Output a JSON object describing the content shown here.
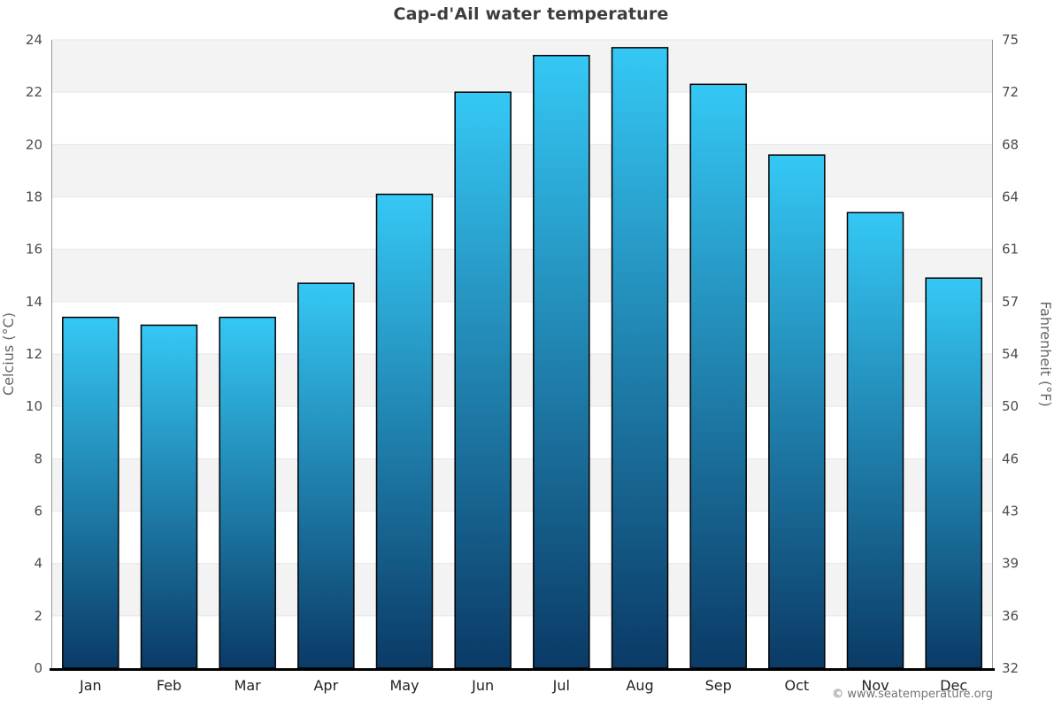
{
  "title": "Cap-d'Ail water temperature",
  "copyright": "© www.seatemperature.org",
  "chart_data": {
    "type": "bar",
    "title": "Cap-d'Ail water temperature",
    "categories": [
      "Jan",
      "Feb",
      "Mar",
      "Apr",
      "May",
      "Jun",
      "Jul",
      "Aug",
      "Sep",
      "Oct",
      "Nov",
      "Dec"
    ],
    "values": [
      13.4,
      13.1,
      13.4,
      14.7,
      18.1,
      22.0,
      23.4,
      23.7,
      22.3,
      19.6,
      17.4,
      14.9
    ],
    "ylabel_left": "Celcius (°C)",
    "ylabel_right": "Fahrenheit (°F)",
    "ylim": [
      0,
      24
    ],
    "y_tick_step": 2,
    "y_left_ticks_top_to_bottom": [
      "24",
      "22",
      "20",
      "18",
      "16",
      "14",
      "12",
      "10",
      "8",
      "6",
      "4",
      "2",
      "0"
    ],
    "y_right_ticks_top_to_bottom": [
      "75",
      "72",
      "68",
      "64",
      "61",
      "57",
      "54",
      "50",
      "46",
      "43",
      "39",
      "36",
      "32"
    ],
    "grid": "alternating-horizontal-bands",
    "legend": "none",
    "colors": {
      "bar_gradient_top": "#35c8f5",
      "bar_gradient_bottom": "#0b3a66",
      "bar_border": "#000000",
      "band_fill": "#f3f3f3",
      "gridline": "#e6e6e6",
      "side_axis_line": "#9a9a9a",
      "bottom_axis_line": "#000000",
      "title_color": "#3d3d3d",
      "tick_label_color": "#4d4d4d",
      "month_label_color": "#222222",
      "copyright_color": "#737373"
    }
  }
}
